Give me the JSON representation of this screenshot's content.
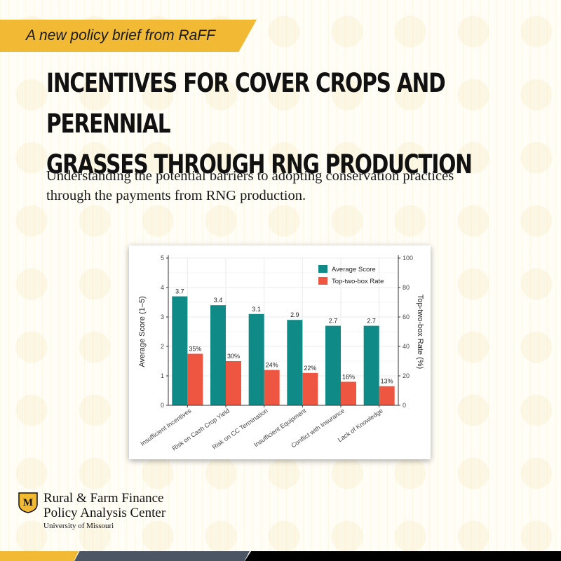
{
  "banner": {
    "text": "A new policy brief from RaFF"
  },
  "headline": {
    "line1": "INCENTIVES FOR COVER CROPS AND PERENNIAL",
    "line2": "GRASSES THROUGH RNG PRODUCTION"
  },
  "subtitle": "Understanding the potential barriers to adopting conservation practices through the payments from RNG production.",
  "chart_data": {
    "type": "bar",
    "categories": [
      "Insufficient Incentives",
      "Risk on Cash Crop Yield",
      "Risk on CC Termination",
      "Insufficient Equipment",
      "Conflict with Insurance",
      "Lack of Knowledge"
    ],
    "series": [
      {
        "name": "Average Score",
        "axis": "left",
        "values": [
          3.7,
          3.4,
          3.1,
          2.9,
          2.7,
          2.7
        ],
        "labels": [
          "3.7",
          "3.4",
          "3.1",
          "2.9",
          "2.7",
          "2.7"
        ],
        "color": "#0f8a87"
      },
      {
        "name": "Top-two-box Rate",
        "axis": "right",
        "values": [
          35,
          30,
          24,
          22,
          16,
          13
        ],
        "labels": [
          "35%",
          "30%",
          "24%",
          "22%",
          "16%",
          "13%"
        ],
        "color": "#ef5642"
      }
    ],
    "ylabel": "Average Score (1–5)",
    "ylabel_right": "Top-two-box Rate (%)",
    "ylim": [
      0,
      5
    ],
    "ylim_right": [
      0,
      100
    ],
    "yticks": [
      "0",
      "1",
      "2",
      "3",
      "4",
      "5"
    ],
    "yticks_right": [
      "0",
      "20",
      "40",
      "60",
      "80",
      "100"
    ],
    "grid": true,
    "legend_position": "top-right"
  },
  "logo": {
    "name_line1": "Rural & Farm Finance",
    "name_line2": "Policy Analysis Center",
    "university": "University of Missouri",
    "mark_letter": "M"
  },
  "colors": {
    "gold": "#f1b934",
    "teal": "#0f8a87",
    "coral": "#ef5642",
    "gray": "#4b5563",
    "black": "#000000"
  }
}
